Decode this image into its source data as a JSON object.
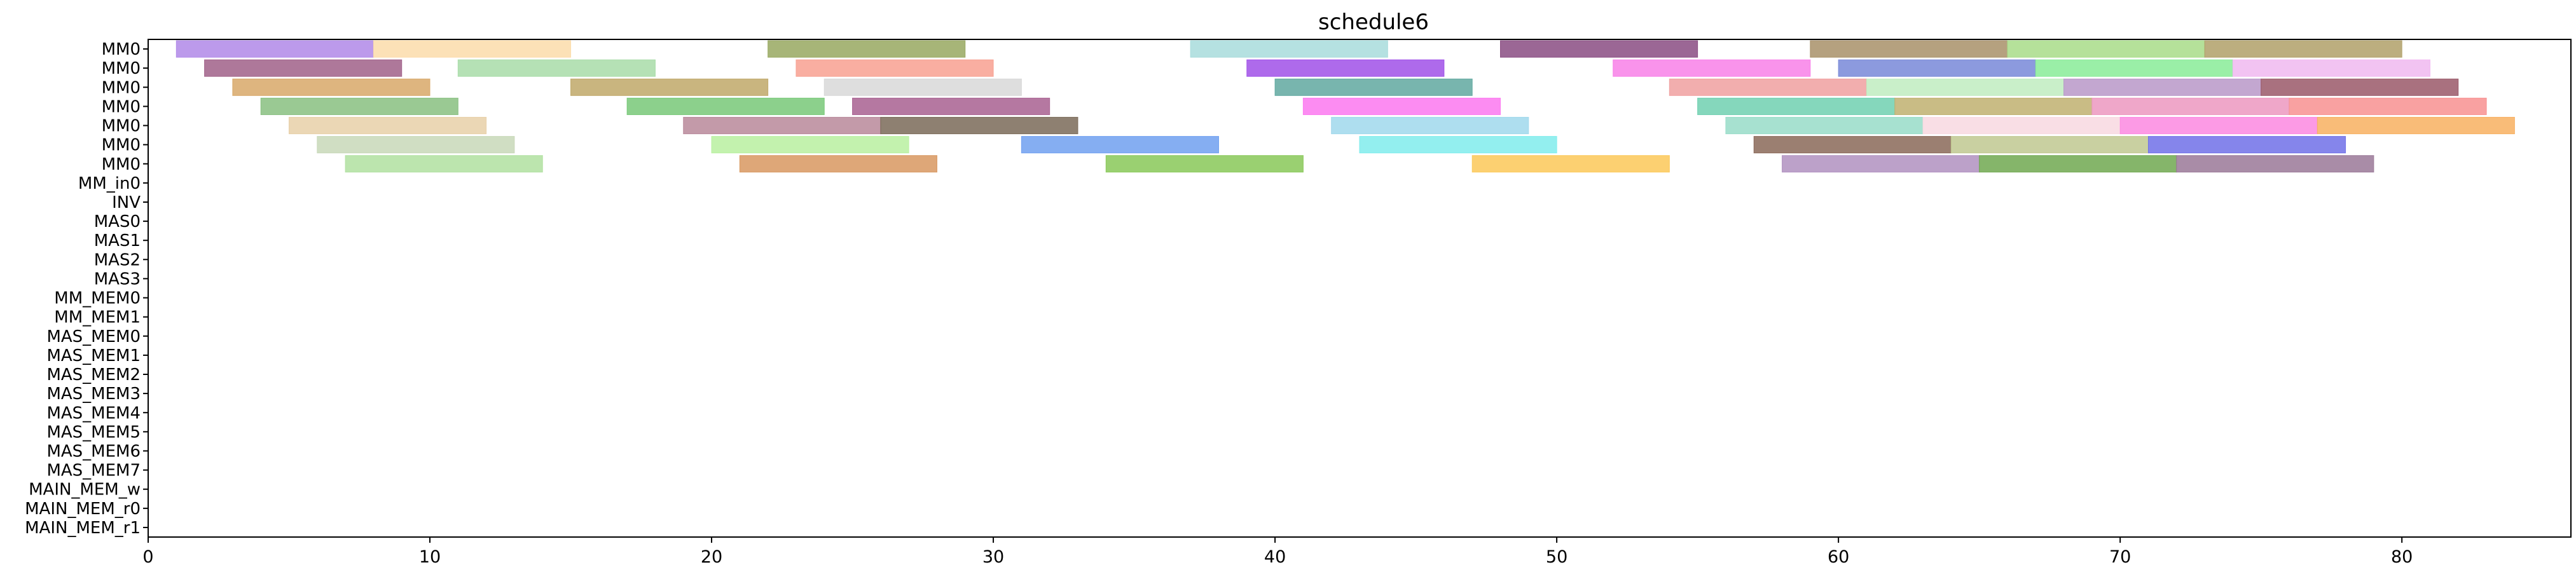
{
  "chart_data": {
    "type": "gantt",
    "title": "schedule6",
    "xlim": [
      0,
      86
    ],
    "xticks": [
      0,
      10,
      20,
      30,
      40,
      50,
      60,
      70,
      80
    ],
    "rows": [
      "MM0",
      "MM0",
      "MM0",
      "MM0",
      "MM0",
      "MM0",
      "MM0",
      "MM_in0",
      "INV",
      "MAS0",
      "MAS1",
      "MAS2",
      "MAS3",
      "MM_MEM0",
      "MM_MEM1",
      "MAS_MEM0",
      "MAS_MEM1",
      "MAS_MEM2",
      "MAS_MEM3",
      "MAS_MEM4",
      "MAS_MEM5",
      "MAS_MEM6",
      "MAS_MEM7",
      "MAIN_MEM_w",
      "MAIN_MEM_r0",
      "MAIN_MEM_r1"
    ],
    "palette": [
      "#b088e8",
      "#fcdcaa",
      "#98a860",
      "#a8dcdc",
      "#8a4c82",
      "#a89068",
      "#88cc88",
      "#b0b8e0",
      "#ee88ee",
      "#f0a090",
      "#6a78d8",
      "#8adc8a",
      "#d070b0",
      "#b89ac8",
      "#909090",
      "#d8a868",
      "#c8a870",
      "#e08a8a",
      "#80c8c0",
      "#fce080",
      "#88d8ec",
      "#60a898",
      "#f0a878",
      "#aa6878",
      "#a8e8a8",
      "#6aaa5a",
      "#8a7868",
      "#f8d0d8",
      "#68b8ec",
      "#f8f8b8",
      "#7070d0",
      "#e8b098",
      "#c0e0c0",
      "#fc88c8",
      "#60d8b8",
      "#b0b0e0",
      "#ff6868",
      "#d0f0ff",
      "#e8d8a8",
      "#d0a8e0"
    ],
    "bars": [
      {
        "row": 0,
        "start": 1,
        "end": 8,
        "color": "#b088e8"
      },
      {
        "row": 0,
        "start": 8,
        "end": 15,
        "color": "#fcdcaa"
      },
      {
        "row": 0,
        "start": 22,
        "end": 29,
        "color": "#98a860"
      },
      {
        "row": 0,
        "start": 37,
        "end": 44,
        "color": "#a8dcdc"
      },
      {
        "row": 0,
        "start": 48,
        "end": 55,
        "color": "#8a4c82"
      },
      {
        "row": 0,
        "start": 59,
        "end": 66,
        "color": "#a89068"
      },
      {
        "row": 0,
        "start": 66,
        "end": 73,
        "color": "#a8dc88"
      },
      {
        "row": 0,
        "start": 73,
        "end": 80,
        "color": "#b0a068"
      },
      {
        "row": 1,
        "start": 2,
        "end": 9,
        "color": "#a06088"
      },
      {
        "row": 1,
        "start": 11,
        "end": 18,
        "color": "#a8dca8"
      },
      {
        "row": 1,
        "start": 23,
        "end": 30,
        "color": "#f8a090"
      },
      {
        "row": 1,
        "start": 39,
        "end": 46,
        "color": "#a050e8"
      },
      {
        "row": 1,
        "start": 52,
        "end": 59,
        "color": "#f880e8"
      },
      {
        "row": 1,
        "start": 60,
        "end": 67,
        "color": "#7888d8"
      },
      {
        "row": 1,
        "start": 67,
        "end": 74,
        "color": "#88ec98"
      },
      {
        "row": 1,
        "start": 74,
        "end": 81,
        "color": "#f0b8f0"
      },
      {
        "row": 2,
        "start": 3,
        "end": 10,
        "color": "#d8a868"
      },
      {
        "row": 2,
        "start": 15,
        "end": 22,
        "color": "#c0a868"
      },
      {
        "row": 2,
        "start": 24,
        "end": 31,
        "color": "#d8d8d8"
      },
      {
        "row": 2,
        "start": 40,
        "end": 47,
        "color": "#60a8a0"
      },
      {
        "row": 2,
        "start": 54,
        "end": 61,
        "color": "#f0a0a0"
      },
      {
        "row": 2,
        "start": 61,
        "end": 68,
        "color": "#c0ecc0"
      },
      {
        "row": 2,
        "start": 68,
        "end": 75,
        "color": "#b898c8"
      },
      {
        "row": 2,
        "start": 75,
        "end": 82,
        "color": "#9a5868"
      },
      {
        "row": 3,
        "start": 4,
        "end": 11,
        "color": "#88c080"
      },
      {
        "row": 3,
        "start": 17,
        "end": 24,
        "color": "#78c878"
      },
      {
        "row": 3,
        "start": 25,
        "end": 32,
        "color": "#a86090"
      },
      {
        "row": 3,
        "start": 41,
        "end": 48,
        "color": "#fc78f0"
      },
      {
        "row": 3,
        "start": 55,
        "end": 62,
        "color": "#70d0b0"
      },
      {
        "row": 3,
        "start": 62,
        "end": 69,
        "color": "#c0b070"
      },
      {
        "row": 3,
        "start": 69,
        "end": 76,
        "color": "#ec98c0"
      },
      {
        "row": 3,
        "start": 76,
        "end": 83,
        "color": "#f89090"
      },
      {
        "row": 4,
        "start": 5,
        "end": 12,
        "color": "#e8d0a8"
      },
      {
        "row": 4,
        "start": 19,
        "end": 26,
        "color": "#b8889a"
      },
      {
        "row": 4,
        "start": 26,
        "end": 33,
        "color": "#7a6a58"
      },
      {
        "row": 4,
        "start": 42,
        "end": 49,
        "color": "#a0d8ec"
      },
      {
        "row": 4,
        "start": 56,
        "end": 63,
        "color": "#98dcc8"
      },
      {
        "row": 4,
        "start": 63,
        "end": 70,
        "color": "#f8d8e0"
      },
      {
        "row": 4,
        "start": 70,
        "end": 77,
        "color": "#fc88e0"
      },
      {
        "row": 4,
        "start": 77,
        "end": 84,
        "color": "#f8b060"
      },
      {
        "row": 5,
        "start": 6,
        "end": 13,
        "color": "#c8d8b8"
      },
      {
        "row": 5,
        "start": 20,
        "end": 27,
        "color": "#b8f0a0"
      },
      {
        "row": 5,
        "start": 31,
        "end": 38,
        "color": "#70a0f0"
      },
      {
        "row": 5,
        "start": 43,
        "end": 50,
        "color": "#80ecec"
      },
      {
        "row": 5,
        "start": 57,
        "end": 64,
        "color": "#8a6858"
      },
      {
        "row": 5,
        "start": 64,
        "end": 71,
        "color": "#c0c890"
      },
      {
        "row": 5,
        "start": 71,
        "end": 78,
        "color": "#7070e8"
      },
      {
        "row": 6,
        "start": 7,
        "end": 14,
        "color": "#b0e0a0"
      },
      {
        "row": 6,
        "start": 21,
        "end": 28,
        "color": "#d89860"
      },
      {
        "row": 6,
        "start": 34,
        "end": 41,
        "color": "#88c858"
      },
      {
        "row": 6,
        "start": 47,
        "end": 54,
        "color": "#fcc858"
      },
      {
        "row": 6,
        "start": 58,
        "end": 65,
        "color": "#b090c0"
      },
      {
        "row": 6,
        "start": 65,
        "end": 72,
        "color": "#70a850"
      },
      {
        "row": 6,
        "start": 72,
        "end": 79,
        "color": "#9a7898"
      }
    ]
  }
}
